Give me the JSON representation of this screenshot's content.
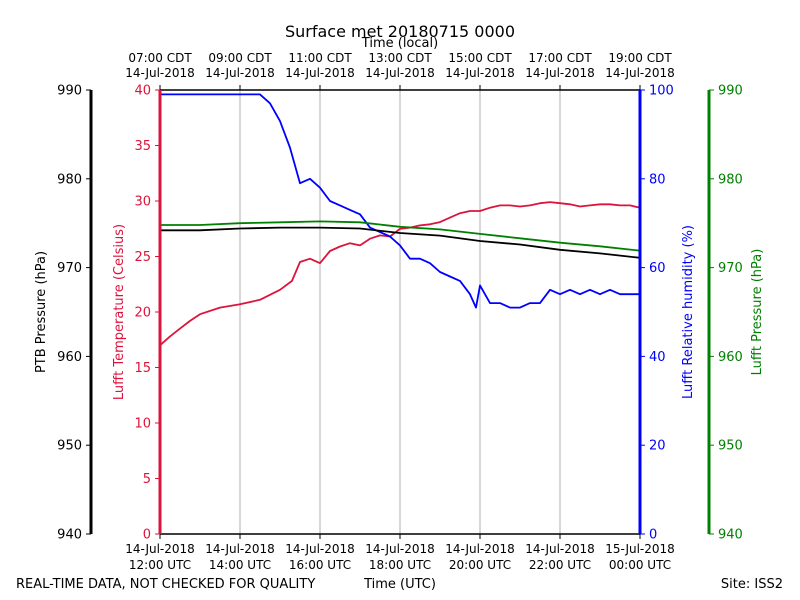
{
  "chart_data": {
    "type": "line",
    "title": "Surface met 20180715 0000",
    "top_axis_label": "Time (local)",
    "xlabel": "Time (UTC)",
    "footer_left": "REAL-TIME DATA, NOT CHECKED FOR QUALITY",
    "footer_right": "Site: ISS2",
    "x_hours_utc": [
      12,
      24
    ],
    "grid": "vertical",
    "bottom_ticks": [
      {
        "hour": 12,
        "line1": "14-Jul-2018",
        "line2": "12:00 UTC"
      },
      {
        "hour": 14,
        "line1": "14-Jul-2018",
        "line2": "14:00 UTC"
      },
      {
        "hour": 16,
        "line1": "14-Jul-2018",
        "line2": "16:00 UTC"
      },
      {
        "hour": 18,
        "line1": "14-Jul-2018",
        "line2": "18:00 UTC"
      },
      {
        "hour": 20,
        "line1": "14-Jul-2018",
        "line2": "20:00 UTC"
      },
      {
        "hour": 22,
        "line1": "14-Jul-2018",
        "line2": "22:00 UTC"
      },
      {
        "hour": 24,
        "line1": "15-Jul-2018",
        "line2": "00:00 UTC"
      }
    ],
    "top_ticks": [
      {
        "hour": 12,
        "line1": "07:00 CDT",
        "line2": "14-Jul-2018"
      },
      {
        "hour": 14,
        "line1": "09:00 CDT",
        "line2": "14-Jul-2018"
      },
      {
        "hour": 16,
        "line1": "11:00 CDT",
        "line2": "14-Jul-2018"
      },
      {
        "hour": 18,
        "line1": "13:00 CDT",
        "line2": "14-Jul-2018"
      },
      {
        "hour": 20,
        "line1": "15:00 CDT",
        "line2": "14-Jul-2018"
      },
      {
        "hour": 22,
        "line1": "17:00 CDT",
        "line2": "14-Jul-2018"
      },
      {
        "hour": 24,
        "line1": "19:00 CDT",
        "line2": "14-Jul-2018"
      }
    ],
    "axes": [
      {
        "id": "ptb",
        "label": "PTB Pressure (hPa)",
        "color": "#000000",
        "range": [
          940,
          990
        ],
        "ticks": [
          "940",
          "950",
          "960",
          "970",
          "980",
          "990"
        ]
      },
      {
        "id": "temp",
        "label": "Lufft Temperature (Celsius)",
        "color": "#dc143c",
        "range": [
          0,
          40
        ],
        "ticks": [
          "0",
          "5",
          "10",
          "15",
          "20",
          "25",
          "30",
          "35",
          "40"
        ]
      },
      {
        "id": "rh",
        "label": "Lufft Relative humidity (%)",
        "color": "#0000ff",
        "range": [
          0,
          100
        ],
        "ticks": [
          "0",
          "20",
          "40",
          "60",
          "80",
          "100"
        ]
      },
      {
        "id": "lufft_p",
        "label": "Lufft Pressure (hPa)",
        "color": "#008000",
        "range": [
          940,
          990
        ],
        "ticks": [
          "940",
          "950",
          "960",
          "970",
          "980",
          "990"
        ]
      }
    ],
    "series": [
      {
        "name": "Lufft Temperature",
        "axis": "temp",
        "color": "#dc143c",
        "x": [
          12.0,
          12.25,
          12.5,
          12.75,
          13.0,
          13.5,
          14.0,
          14.5,
          15.0,
          15.3,
          15.5,
          15.75,
          16.0,
          16.25,
          16.5,
          16.75,
          17.0,
          17.25,
          17.5,
          17.75,
          18.0,
          18.25,
          18.5,
          18.75,
          19.0,
          19.25,
          19.5,
          19.75,
          20.0,
          20.25,
          20.5,
          20.75,
          21.0,
          21.25,
          21.5,
          21.75,
          22.0,
          22.25,
          22.5,
          22.75,
          23.0,
          23.25,
          23.5,
          23.75,
          24.0
        ],
        "values": [
          17.0,
          17.8,
          18.5,
          19.2,
          19.8,
          20.4,
          20.7,
          21.1,
          22.0,
          22.8,
          24.5,
          24.8,
          24.4,
          25.5,
          25.9,
          26.2,
          26.0,
          26.6,
          26.9,
          26.8,
          27.5,
          27.6,
          27.8,
          27.9,
          28.1,
          28.5,
          28.9,
          29.1,
          29.1,
          29.4,
          29.6,
          29.6,
          29.5,
          29.6,
          29.8,
          29.9,
          29.8,
          29.7,
          29.5,
          29.6,
          29.7,
          29.7,
          29.6,
          29.6,
          29.4
        ]
      },
      {
        "name": "Lufft Relative humidity",
        "axis": "rh",
        "color": "#0000ff",
        "x": [
          12.0,
          12.5,
          13.0,
          13.5,
          14.0,
          14.5,
          14.75,
          15.0,
          15.25,
          15.5,
          15.75,
          16.0,
          16.25,
          16.5,
          16.75,
          17.0,
          17.25,
          17.5,
          17.75,
          18.0,
          18.25,
          18.5,
          18.75,
          19.0,
          19.25,
          19.5,
          19.75,
          19.9,
          20.0,
          20.25,
          20.5,
          20.75,
          21.0,
          21.25,
          21.5,
          21.75,
          22.0,
          22.25,
          22.5,
          22.75,
          23.0,
          23.25,
          23.5,
          23.75,
          24.0
        ],
        "values": [
          99,
          99,
          99,
          99,
          99,
          99,
          97,
          93,
          87,
          79,
          80,
          78,
          75,
          74,
          73,
          72,
          69,
          68,
          67,
          65,
          62,
          62,
          61,
          59,
          58,
          57,
          54,
          51,
          56,
          52,
          52,
          51,
          51,
          52,
          52,
          55,
          54,
          55,
          54,
          55,
          54,
          55,
          54,
          54,
          54
        ]
      },
      {
        "name": "PTB Pressure",
        "axis": "ptb",
        "color": "#000000",
        "x": [
          12.0,
          13.0,
          14.0,
          15.0,
          16.0,
          17.0,
          18.0,
          19.0,
          20.0,
          21.0,
          22.0,
          23.0,
          24.0
        ],
        "values": [
          974.2,
          974.2,
          974.4,
          974.5,
          974.5,
          974.4,
          973.9,
          973.6,
          973.0,
          972.6,
          972.0,
          971.6,
          971.1
        ]
      },
      {
        "name": "Lufft Pressure",
        "axis": "lufft_p",
        "color": "#008000",
        "x": [
          12.0,
          13.0,
          14.0,
          15.0,
          16.0,
          17.0,
          18.0,
          19.0,
          20.0,
          21.0,
          22.0,
          23.0,
          24.0
        ],
        "values": [
          974.8,
          974.8,
          975.0,
          975.1,
          975.2,
          975.1,
          974.6,
          974.3,
          973.8,
          973.3,
          972.8,
          972.4,
          971.9
        ]
      }
    ]
  }
}
